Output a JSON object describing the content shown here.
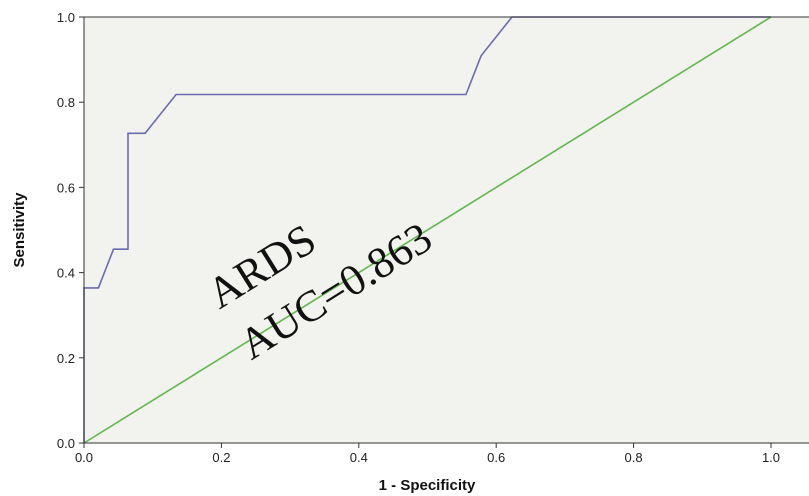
{
  "chart_data": {
    "type": "line",
    "xlabel": "1 - Specificity",
    "ylabel": "Sensitivity",
    "xlim": [
      0,
      1
    ],
    "ylim": [
      0,
      1
    ],
    "x_ticks": [
      "0.0",
      "0.2",
      "0.4",
      "0.6",
      "0.8",
      "1.0"
    ],
    "y_ticks": [
      "0.0",
      "0.2",
      "0.4",
      "0.6",
      "0.8",
      "1.0"
    ],
    "grid": false,
    "series": [
      {
        "color": "#6b6bb0",
        "x": [
          0,
          0,
          0.021,
          0.043,
          0.064,
          0.064,
          0.089,
          0.134,
          0.556,
          0.578,
          0.623,
          1.0
        ],
        "y": [
          0,
          0.364,
          0.364,
          0.455,
          0.455,
          0.727,
          0.727,
          0.818,
          0.818,
          0.909,
          1.0,
          1.0
        ]
      },
      {
        "color": "#5fb84a",
        "x": [
          0,
          1
        ],
        "y": [
          0,
          1
        ]
      }
    ],
    "annotation": {
      "line1": "ARDS",
      "line2": "AUC=0.863"
    },
    "background_color": "#f2f2ef"
  }
}
